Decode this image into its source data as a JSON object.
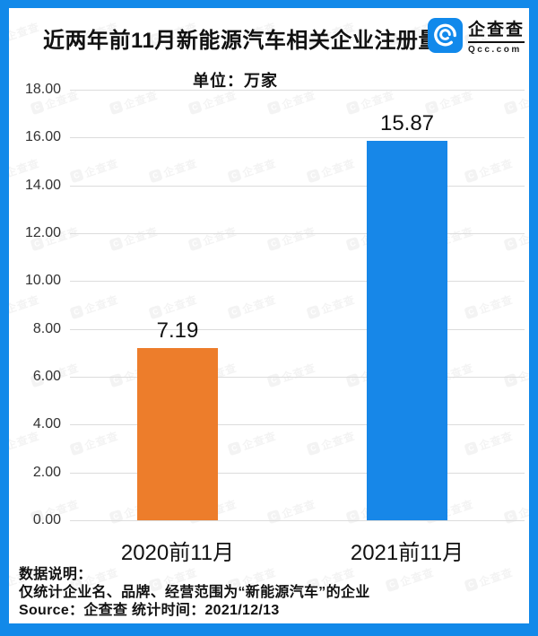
{
  "header": {
    "title": "近两年前11月新能源汽车相关企业注册量",
    "logo_name": "企查查",
    "logo_domain": "Qcc.com"
  },
  "unit_label": "单位：万家",
  "chart_data": {
    "type": "bar",
    "title": "近两年前11月新能源汽车相关企业注册量",
    "categories": [
      "2020前11月",
      "2021前11月"
    ],
    "values": [
      7.19,
      15.87
    ],
    "value_labels": [
      "7.19",
      "15.87"
    ],
    "bar_colors": [
      "#ED7D2B",
      "#1787E8"
    ],
    "xlabel": "",
    "ylabel": "单位：万家",
    "ylim": [
      0,
      18
    ],
    "ytick_step": 2,
    "ytick_labels": [
      "18.00",
      "16.00",
      "14.00",
      "12.00",
      "10.00",
      "8.00",
      "6.00",
      "4.00",
      "2.00",
      "0.00"
    ],
    "grid": true,
    "legend": false
  },
  "notes": {
    "heading": "数据说明：",
    "scope": "仅统计企业名、品牌、经营范围为“新能源汽车”的企业",
    "source": "Source：企查查  统计时间：2021/12/13"
  },
  "colors": {
    "frame_blue": "#1289E9",
    "bar_orange": "#ED7D2B",
    "bar_blue": "#1787E8",
    "gridline": "#DCDCDC"
  },
  "watermark_text": "企查查"
}
